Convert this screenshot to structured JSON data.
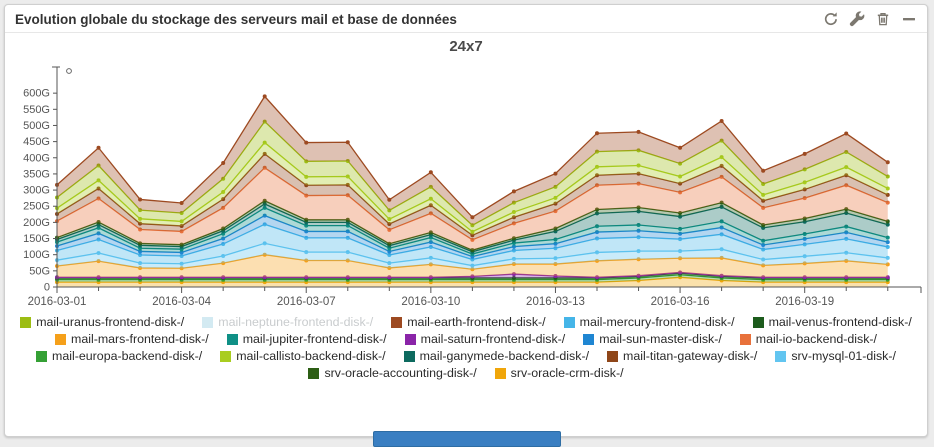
{
  "widget": {
    "title": "Evolution globale du stockage des serveurs mail et base de données",
    "toolbar": [
      {
        "id": "refresh",
        "icon": "refresh-icon"
      },
      {
        "id": "settings",
        "icon": "wrench-icon"
      },
      {
        "id": "delete",
        "icon": "trash-icon"
      },
      {
        "id": "collapse",
        "icon": "minus-icon"
      }
    ]
  },
  "colors": {
    "icon": "#7c7870",
    "axis": "#555555",
    "card_border": "#cfcfcf",
    "scrollbar_accent": "#3a7fc2",
    "disabled_legend_text": "#c9ccce"
  },
  "chart_artifacts": [
    "open-circle-marker-top-left"
  ],
  "chart_data": {
    "type": "area",
    "stacked": true,
    "title": "24x7",
    "unit": "G",
    "grid": false,
    "legend_position": "bottom",
    "ylim": [
      0,
      650
    ],
    "y_tick_step": 50,
    "y_ticks": [
      {
        "value": 600,
        "label": "600G"
      },
      {
        "value": 550,
        "label": "550G"
      },
      {
        "value": 500,
        "label": "500G"
      },
      {
        "value": 450,
        "label": "450G"
      },
      {
        "value": 400,
        "label": "400G"
      },
      {
        "value": 350,
        "label": "350G"
      },
      {
        "value": 300,
        "label": "300G"
      },
      {
        "value": 250,
        "label": "250G"
      },
      {
        "value": 200,
        "label": "200G"
      },
      {
        "value": 150,
        "label": "150G"
      },
      {
        "value": 100,
        "label": "100G"
      },
      {
        "value": 50,
        "label": "50G"
      },
      {
        "value": 0,
        "label": "0"
      }
    ],
    "x": [
      "2016-03-01",
      "2016-03-02",
      "2016-03-03",
      "2016-03-04",
      "2016-03-05",
      "2016-03-06",
      "2016-03-07",
      "2016-03-08",
      "2016-03-09",
      "2016-03-10",
      "2016-03-11",
      "2016-03-12",
      "2016-03-13",
      "2016-03-14",
      "2016-03-15",
      "2016-03-16",
      "2016-03-17",
      "2016-03-18",
      "2016-03-19",
      "2016-03-20",
      "2016-03-21"
    ],
    "x_label_every": 3,
    "x_tick_labels": [
      "2016-03-01",
      "2016-03-04",
      "2016-03-07",
      "2016-03-10",
      "2016-03-13",
      "2016-03-16",
      "2016-03-19"
    ],
    "series": [
      {
        "id": "crm",
        "name": "srv-oracle-crm-disk-/",
        "color": "#f0a60a",
        "markers": true,
        "values": [
          15,
          15,
          15,
          15,
          15,
          15,
          15,
          15,
          15,
          15,
          15,
          15,
          15,
          15,
          20,
          30,
          20,
          15,
          15,
          15,
          15
        ]
      },
      {
        "id": "europa",
        "name": "mail-europa-backend-disk-/",
        "color": "#35a035",
        "markers": true,
        "values": [
          8,
          8,
          8,
          8,
          8,
          8,
          8,
          8,
          8,
          8,
          8,
          8,
          8,
          8,
          8,
          8,
          8,
          8,
          8,
          8,
          8
        ]
      },
      {
        "id": "venus",
        "name": "mail-venus-frontend-disk-/",
        "color": "#1d5c1d",
        "markers": true,
        "values": [
          5,
          5,
          5,
          5,
          5,
          5,
          5,
          5,
          5,
          5,
          5,
          5,
          5,
          5,
          5,
          5,
          5,
          5,
          5,
          5,
          5
        ]
      },
      {
        "id": "saturn",
        "name": "mail-saturn-frontend-disk-/",
        "color": "#8a24a8",
        "markers": true,
        "values": [
          2,
          2,
          2,
          2,
          2,
          2,
          2,
          2,
          2,
          2,
          5,
          12,
          6,
          2,
          2,
          2,
          2,
          2,
          2,
          2,
          2
        ]
      },
      {
        "id": "mars",
        "name": "mail-mars-frontend-disk-/",
        "color": "#f5a01a",
        "markers": true,
        "values": [
          35,
          50,
          29,
          28,
          44,
          70,
          52,
          52,
          29,
          40,
          22,
          31,
          37,
          51,
          51,
          44,
          55,
          37,
          43,
          51,
          40
        ]
      },
      {
        "id": "mysql",
        "name": "srv-mysql-01-disk-/",
        "color": "#62c5f0",
        "markers": true,
        "values": [
          18,
          25,
          15,
          14,
          22,
          35,
          26,
          26,
          15,
          20,
          11,
          16,
          18,
          26,
          25,
          22,
          27,
          18,
          22,
          25,
          20
        ]
      },
      {
        "id": "mercury",
        "name": "mail-mercury-frontend-disk-/",
        "color": "#45b5e8",
        "markers": true,
        "values": [
          30,
          42,
          25,
          24,
          37,
          59,
          44,
          44,
          25,
          34,
          19,
          26,
          31,
          43,
          43,
          37,
          46,
          31,
          37,
          43,
          34
        ]
      },
      {
        "id": "sun",
        "name": "mail-sun-master-disk-/",
        "color": "#1f86d2",
        "markers": true,
        "values": [
          14,
          19,
          11,
          11,
          17,
          27,
          20,
          20,
          11,
          15,
          9,
          12,
          14,
          20,
          20,
          17,
          21,
          14,
          17,
          20,
          15
        ]
      },
      {
        "id": "jupiter",
        "name": "mail-jupiter-frontend-disk-/",
        "color": "#0f9086",
        "markers": true,
        "values": [
          12,
          17,
          10,
          10,
          15,
          24,
          18,
          18,
          10,
          14,
          8,
          11,
          13,
          18,
          18,
          15,
          19,
          13,
          15,
          18,
          14
        ]
      },
      {
        "id": "ganymede",
        "name": "mail-ganymede-backend-disk-/",
        "color": "#0d6a5f",
        "markers": true,
        "values": [
          8,
          10,
          9,
          8,
          9,
          12,
          10,
          10,
          8,
          9,
          7,
          9,
          25,
          40,
          42,
          38,
          45,
          40,
          38,
          42,
          40
        ]
      },
      {
        "id": "accounting",
        "name": "srv-oracle-accounting-disk-/",
        "color": "#2c5e14",
        "markers": true,
        "values": [
          6,
          8,
          6,
          6,
          7,
          10,
          8,
          8,
          6,
          7,
          5,
          6,
          9,
          12,
          12,
          11,
          13,
          9,
          10,
          12,
          10
        ]
      },
      {
        "id": "neptune",
        "name": "mail-neptune-frontend-disk-/",
        "color": "#d3eaf2",
        "markers": false,
        "disabled": true,
        "values": [
          0,
          0,
          0,
          0,
          0,
          0,
          0,
          0,
          0,
          0,
          0,
          0,
          0,
          0,
          0,
          0,
          0,
          0,
          0,
          0,
          0
        ]
      },
      {
        "id": "io",
        "name": "mail-io-backend-disk-/",
        "color": "#e8713b",
        "markers": true,
        "values": [
          51,
          73,
          43,
          41,
          64,
          102,
          75,
          76,
          43,
          59,
          32,
          46,
          54,
          75,
          74,
          64,
          80,
          53,
          63,
          74,
          58
        ]
      },
      {
        "id": "titan",
        "name": "mail-titan-gateway-disk-/",
        "color": "#8f4619",
        "markers": true,
        "values": [
          22,
          31,
          18,
          17,
          27,
          43,
          32,
          32,
          18,
          25,
          14,
          19,
          23,
          31,
          31,
          27,
          34,
          22,
          27,
          31,
          24
        ]
      },
      {
        "id": "callisto",
        "name": "mail-callisto-backend-disk-/",
        "color": "#a9cd20",
        "markers": true,
        "values": [
          18,
          25,
          15,
          14,
          22,
          35,
          26,
          26,
          15,
          20,
          11,
          16,
          18,
          26,
          25,
          22,
          27,
          18,
          22,
          25,
          20
        ]
      },
      {
        "id": "uranus",
        "name": "mail-uranus-frontend-disk-/",
        "color": "#9cbd13",
        "markers": true,
        "values": [
          33,
          46,
          27,
          26,
          41,
          65,
          48,
          48,
          27,
          37,
          20,
          29,
          34,
          47,
          47,
          40,
          51,
          34,
          40,
          47,
          37
        ]
      },
      {
        "id": "earth",
        "name": "mail-earth-frontend-disk-/",
        "color": "#9d4a21",
        "markers": true,
        "values": [
          39,
          55,
          33,
          31,
          49,
          78,
          58,
          58,
          33,
          45,
          25,
          35,
          41,
          57,
          57,
          49,
          61,
          41,
          48,
          57,
          44
        ]
      }
    ],
    "legend_rows": [
      [
        "uranus",
        "neptune",
        "earth",
        "mercury",
        "venus"
      ],
      [
        "mars",
        "jupiter",
        "saturn",
        "sun",
        "io"
      ],
      [
        "europa",
        "callisto",
        "ganymede",
        "titan",
        "mysql"
      ],
      [
        "accounting",
        "crm"
      ]
    ]
  }
}
